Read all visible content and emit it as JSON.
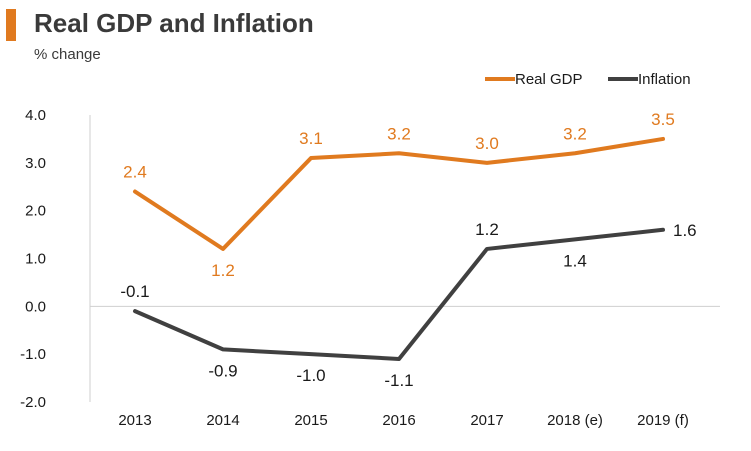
{
  "header": {
    "title": "Real GDP and Inflation",
    "subtitle": "% change"
  },
  "colors": {
    "real_gdp": "#e07a1f",
    "inflation": "#404040",
    "axis": "#cfcfcf"
  },
  "chart_data": {
    "type": "line",
    "title": "Real GDP and Inflation",
    "ylabel": "% change",
    "xlabel": "",
    "categories": [
      "2013",
      "2014",
      "2015",
      "2016",
      "2017",
      "2018 (e)",
      "2019 (f)"
    ],
    "ylim": [
      -2.0,
      4.0
    ],
    "yticks": [
      -2.0,
      -1.0,
      0.0,
      1.0,
      2.0,
      3.0,
      4.0
    ],
    "ytick_labels": [
      "-2.0",
      "-1.0",
      "0.0",
      "1.0",
      "2.0",
      "3.0",
      "4.0"
    ],
    "legend_position": "top-right",
    "grid": false,
    "series": [
      {
        "name": "Real GDP",
        "values": [
          2.4,
          1.2,
          3.1,
          3.2,
          3.0,
          3.2,
          3.5
        ],
        "labels": [
          "2.4",
          "1.2",
          "3.1",
          "3.2",
          "3.0",
          "3.2",
          "3.5"
        ],
        "label_pos": [
          "above",
          "below",
          "above",
          "above",
          "above",
          "above",
          "above"
        ]
      },
      {
        "name": "Inflation",
        "values": [
          -0.1,
          -0.9,
          -1.0,
          -1.1,
          1.2,
          1.4,
          1.6
        ],
        "labels": [
          "-0.1",
          "-0.9",
          "-1.0",
          "-1.1",
          "1.2",
          "1.4",
          "1.6"
        ],
        "label_pos": [
          "above",
          "below",
          "below",
          "below",
          "above",
          "below",
          "right"
        ]
      }
    ]
  }
}
